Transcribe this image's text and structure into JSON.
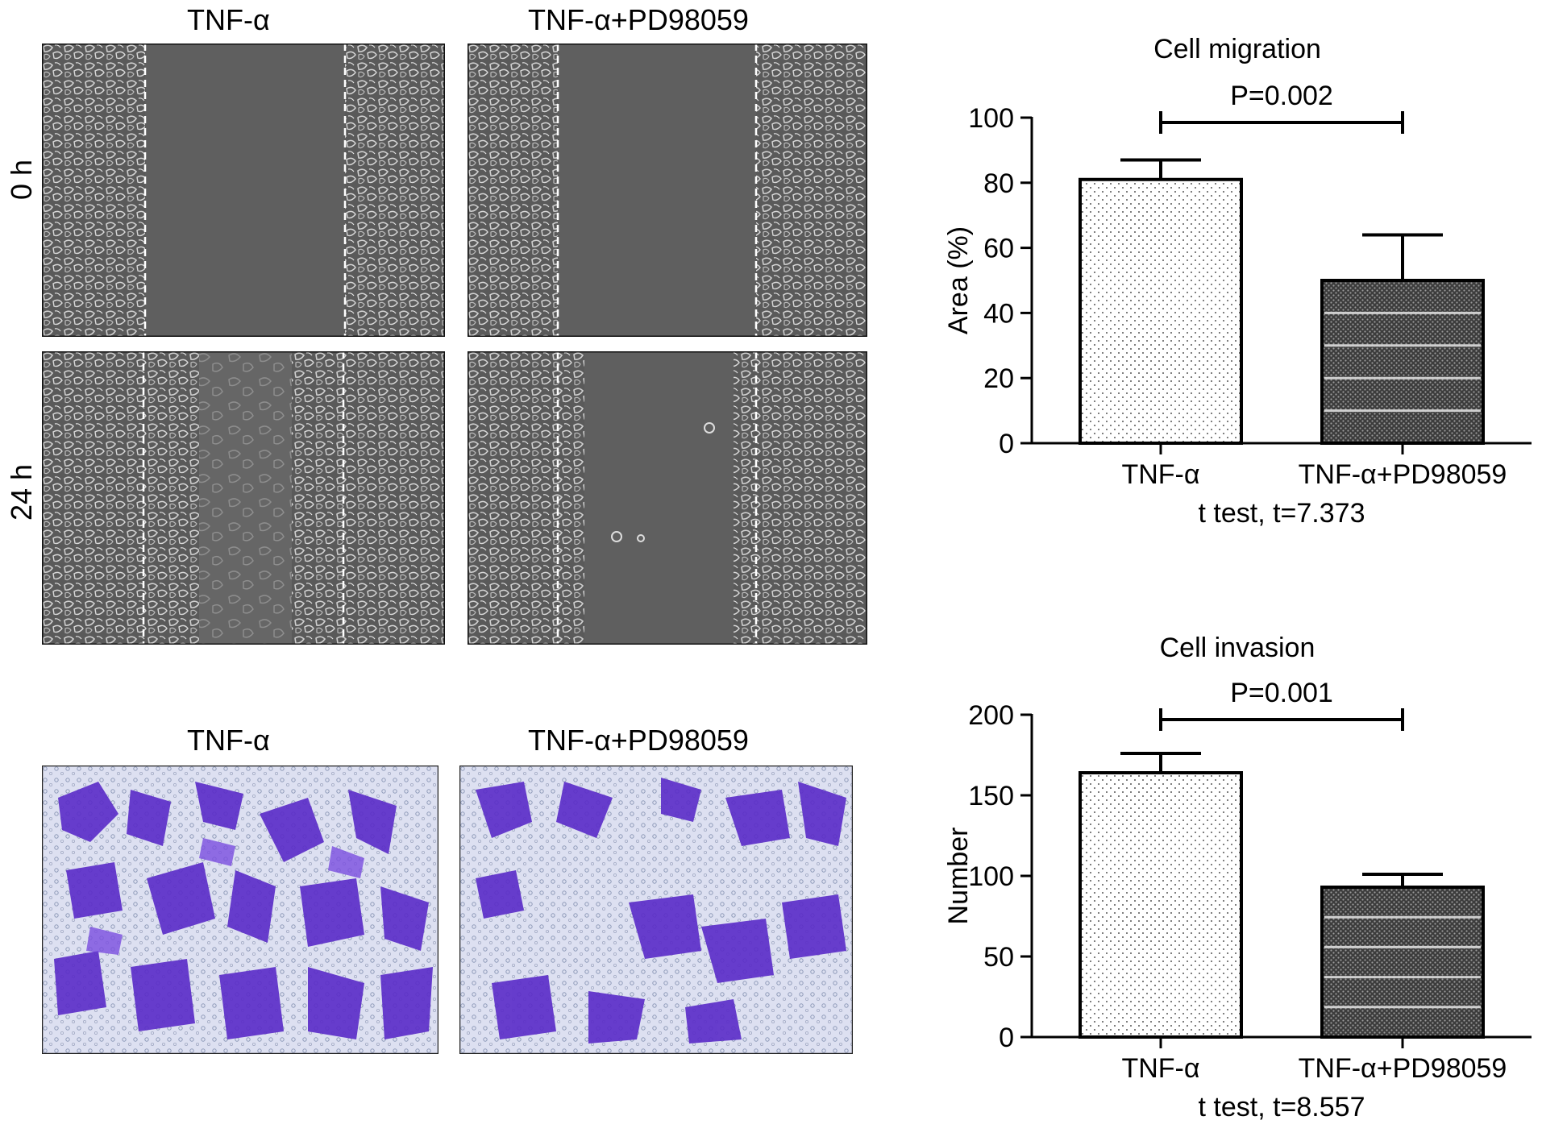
{
  "figure": {
    "scratch": {
      "col_labels": [
        "TNF-α",
        "TNF-α+PD98059"
      ],
      "row_labels": [
        "0 h",
        "24 h"
      ],
      "image_description": "Phase-contrast micrographs of wound-healing assay; white dashed lines mark scratch edges"
    },
    "invasion": {
      "col_labels": [
        "TNF-α",
        "TNF-α+PD98059"
      ],
      "image_description": "Crystal violet stained transwell invasion images"
    }
  },
  "chart_data": [
    {
      "type": "bar",
      "title": "Cell migration",
      "ylabel": "Area (%)",
      "xlabel": "t test, t=7.373",
      "categories": [
        "TNF-α",
        "TNF-α+PD98059"
      ],
      "values": [
        81,
        50
      ],
      "errors": [
        6,
        14
      ],
      "ylim": [
        0,
        100
      ],
      "yticks": [
        0,
        20,
        40,
        60,
        80,
        100
      ],
      "significance": "P=0.002",
      "grid": false
    },
    {
      "type": "bar",
      "title": "Cell invasion",
      "ylabel": "Number",
      "xlabel": "t test, t=8.557",
      "categories": [
        "TNF-α",
        "TNF-α+PD98059"
      ],
      "values": [
        164,
        93
      ],
      "errors": [
        12,
        8
      ],
      "ylim": [
        0,
        200
      ],
      "yticks": [
        0,
        50,
        100,
        150,
        200
      ],
      "significance": "P=0.001",
      "grid": false
    }
  ]
}
